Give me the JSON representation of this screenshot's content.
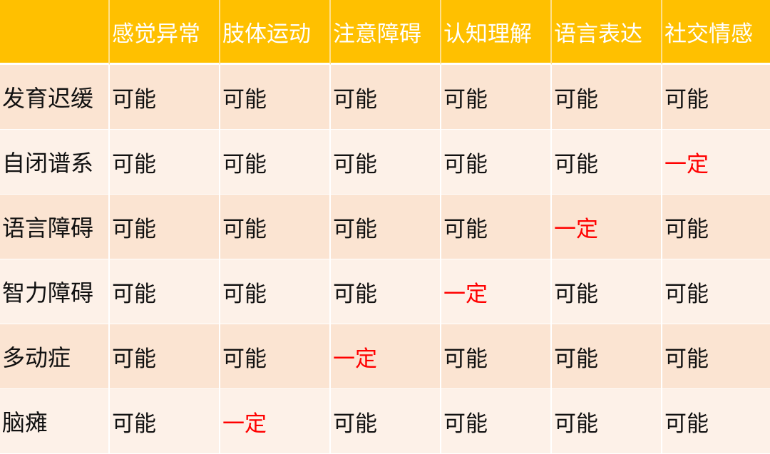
{
  "table": {
    "corner": "",
    "columns": [
      "感觉异常",
      "肢体运动",
      "注意障碍",
      "认知理解",
      "语言表达",
      "社交情感"
    ],
    "rows": [
      {
        "label": "发育迟缓",
        "cells": [
          "可能",
          "可能",
          "可能",
          "可能",
          "可能",
          "可能"
        ]
      },
      {
        "label": "自闭谱系",
        "cells": [
          "可能",
          "可能",
          "可能",
          "可能",
          "可能",
          "一定"
        ]
      },
      {
        "label": "语言障碍",
        "cells": [
          "可能",
          "可能",
          "可能",
          "可能",
          "一定",
          "可能"
        ]
      },
      {
        "label": "智力障碍",
        "cells": [
          "可能",
          "可能",
          "可能",
          "一定",
          "可能",
          "可能"
        ]
      },
      {
        "label": "多动症",
        "cells": [
          "可能",
          "可能",
          "一定",
          "可能",
          "可能",
          "可能"
        ]
      },
      {
        "label": "脑瘫",
        "cells": [
          "可能",
          "一定",
          "可能",
          "可能",
          "可能",
          "可能"
        ]
      }
    ]
  },
  "colors": {
    "header": "#FFC000",
    "row_odd": "#FBE4D2",
    "row_even": "#FDF1E8",
    "definite": "#FF0000",
    "possible": "#111111"
  }
}
